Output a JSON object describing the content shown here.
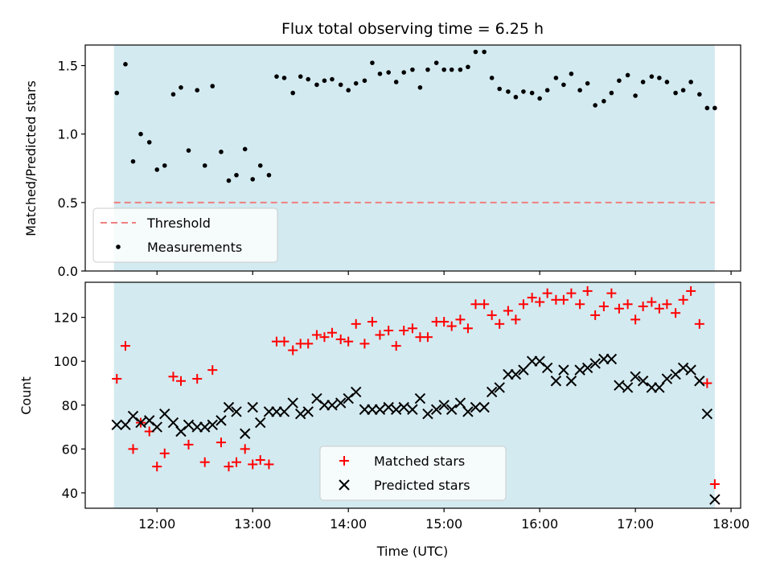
{
  "chart_data": [
    {
      "type": "scatter",
      "title": "Flux total observing time = 6.25 h",
      "xlabel": "",
      "ylabel": "Matched/Predicted stars",
      "ylim": [
        0,
        1.65
      ],
      "y_ticks": [
        "0.0",
        "0.5",
        "1.0",
        "1.5"
      ],
      "x_axis": "time (hours UTC)",
      "x_range_hours": [
        11.25,
        18.1
      ],
      "observing_window_hours": [
        11.55,
        17.83
      ],
      "shading_color": "#d3eaf0",
      "threshold": {
        "name": "Threshold",
        "value": 0.5,
        "color": "#f08080",
        "style": "dashed"
      },
      "legend": {
        "placement": "lower-left",
        "entries": [
          "Threshold",
          "Measurements"
        ]
      },
      "series": [
        {
          "name": "Measurements",
          "marker": "dot",
          "color": "#000000",
          "x": [
            11.58,
            11.67,
            11.75,
            11.83,
            11.92,
            12.0,
            12.08,
            12.17,
            12.25,
            12.33,
            12.42,
            12.5,
            12.58,
            12.67,
            12.75,
            12.83,
            12.92,
            13.0,
            13.08,
            13.17,
            13.25,
            13.33,
            13.42,
            13.5,
            13.58,
            13.67,
            13.75,
            13.83,
            13.92,
            14.0,
            14.08,
            14.17,
            14.25,
            14.33,
            14.42,
            14.5,
            14.58,
            14.67,
            14.75,
            14.83,
            14.92,
            15.0,
            15.08,
            15.17,
            15.25,
            15.33,
            15.42,
            15.5,
            15.58,
            15.67,
            15.75,
            15.83,
            15.92,
            16.0,
            16.08,
            16.17,
            16.25,
            16.33,
            16.42,
            16.5,
            16.58,
            16.67,
            16.75,
            16.83,
            16.92,
            17.0,
            17.08,
            17.17,
            17.25,
            17.33,
            17.42,
            17.5,
            17.58,
            17.67,
            17.75,
            17.83
          ],
          "y": [
            1.3,
            1.51,
            0.8,
            1.0,
            0.94,
            0.74,
            0.77,
            1.29,
            1.34,
            0.88,
            1.32,
            0.77,
            1.35,
            0.87,
            0.66,
            0.7,
            0.89,
            0.67,
            0.77,
            0.7,
            1.42,
            1.41,
            1.3,
            1.42,
            1.4,
            1.36,
            1.39,
            1.4,
            1.36,
            1.32,
            1.37,
            1.39,
            1.52,
            1.44,
            1.45,
            1.38,
            1.45,
            1.47,
            1.34,
            1.47,
            1.52,
            1.47,
            1.47,
            1.47,
            1.49,
            1.6,
            1.6,
            1.41,
            1.33,
            1.31,
            1.27,
            1.31,
            1.3,
            1.26,
            1.32,
            1.41,
            1.36,
            1.44,
            1.32,
            1.37,
            1.21,
            1.24,
            1.3,
            1.39,
            1.43,
            1.28,
            1.38,
            1.42,
            1.41,
            1.38,
            1.3,
            1.32,
            1.38,
            1.29,
            1.19,
            1.19
          ]
        }
      ]
    },
    {
      "type": "scatter",
      "title": "",
      "xlabel": "Time (UTC)",
      "ylabel": "Count",
      "ylim": [
        33,
        136
      ],
      "y_ticks": [
        "40",
        "60",
        "80",
        "100",
        "120"
      ],
      "x_ticks": [
        "12:00",
        "13:00",
        "14:00",
        "15:00",
        "16:00",
        "17:00",
        "18:00"
      ],
      "x_range_hours": [
        11.25,
        18.1
      ],
      "observing_window_hours": [
        11.55,
        17.83
      ],
      "shading_color": "#d3eaf0",
      "legend": {
        "placement": "lower-center",
        "entries": [
          "Matched stars",
          "Predicted stars"
        ]
      },
      "series": [
        {
          "name": "Matched stars",
          "marker": "plus",
          "color": "#ff0000",
          "x": [
            11.58,
            11.67,
            11.75,
            11.83,
            11.92,
            12.0,
            12.08,
            12.17,
            12.25,
            12.33,
            12.42,
            12.5,
            12.58,
            12.67,
            12.75,
            12.83,
            12.92,
            13.0,
            13.08,
            13.17,
            13.25,
            13.33,
            13.42,
            13.5,
            13.58,
            13.67,
            13.75,
            13.83,
            13.92,
            14.0,
            14.08,
            14.17,
            14.25,
            14.33,
            14.42,
            14.5,
            14.58,
            14.67,
            14.75,
            14.83,
            14.92,
            15.0,
            15.08,
            15.17,
            15.25,
            15.33,
            15.42,
            15.5,
            15.58,
            15.67,
            15.75,
            15.83,
            15.92,
            16.0,
            16.08,
            16.17,
            16.25,
            16.33,
            16.42,
            16.5,
            16.58,
            16.67,
            16.75,
            16.83,
            16.92,
            17.0,
            17.08,
            17.17,
            17.25,
            17.33,
            17.42,
            17.5,
            17.58,
            17.67,
            17.75,
            17.83
          ],
          "y": [
            92,
            107,
            60,
            72,
            68,
            52,
            58,
            93,
            91,
            62,
            92,
            54,
            96,
            63,
            52,
            54,
            60,
            53,
            55,
            53,
            109,
            109,
            105,
            108,
            108,
            112,
            111,
            113,
            110,
            109,
            117,
            108,
            118,
            112,
            114,
            107,
            114,
            115,
            111,
            111,
            118,
            118,
            116,
            119,
            115,
            126,
            126,
            121,
            117,
            123,
            119,
            126,
            129,
            127,
            131,
            128,
            128,
            131,
            126,
            132,
            121,
            125,
            131,
            124,
            126,
            119,
            125,
            127,
            124,
            126,
            122,
            128,
            132,
            117,
            90,
            44
          ]
        },
        {
          "name": "Predicted stars",
          "marker": "x",
          "color": "#000000",
          "x": [
            11.58,
            11.67,
            11.75,
            11.83,
            11.92,
            12.0,
            12.08,
            12.17,
            12.25,
            12.33,
            12.42,
            12.5,
            12.58,
            12.67,
            12.75,
            12.83,
            12.92,
            13.0,
            13.08,
            13.17,
            13.25,
            13.33,
            13.42,
            13.5,
            13.58,
            13.67,
            13.75,
            13.83,
            13.92,
            14.0,
            14.08,
            14.17,
            14.25,
            14.33,
            14.42,
            14.5,
            14.58,
            14.67,
            14.75,
            14.83,
            14.92,
            15.0,
            15.08,
            15.17,
            15.25,
            15.33,
            15.42,
            15.5,
            15.58,
            15.67,
            15.75,
            15.83,
            15.92,
            16.0,
            16.08,
            16.17,
            16.25,
            16.33,
            16.42,
            16.5,
            16.58,
            16.67,
            16.75,
            16.83,
            16.92,
            17.0,
            17.08,
            17.17,
            17.25,
            17.33,
            17.42,
            17.5,
            17.58,
            17.67,
            17.75,
            17.83
          ],
          "y": [
            71,
            71,
            75,
            72,
            73,
            70,
            76,
            72,
            68,
            71,
            70,
            70,
            71,
            73,
            79,
            77,
            67,
            79,
            72,
            77,
            77,
            77,
            81,
            76,
            77,
            83,
            80,
            80,
            81,
            83,
            86,
            78,
            78,
            78,
            79,
            78,
            79,
            78,
            83,
            76,
            78,
            80,
            78,
            81,
            77,
            79,
            79,
            86,
            88,
            94,
            94,
            96,
            100,
            100,
            97,
            91,
            96,
            91,
            96,
            97,
            99,
            101,
            101,
            89,
            88,
            93,
            91,
            88,
            88,
            92,
            94,
            97,
            96,
            91,
            76,
            37
          ]
        }
      ]
    }
  ]
}
